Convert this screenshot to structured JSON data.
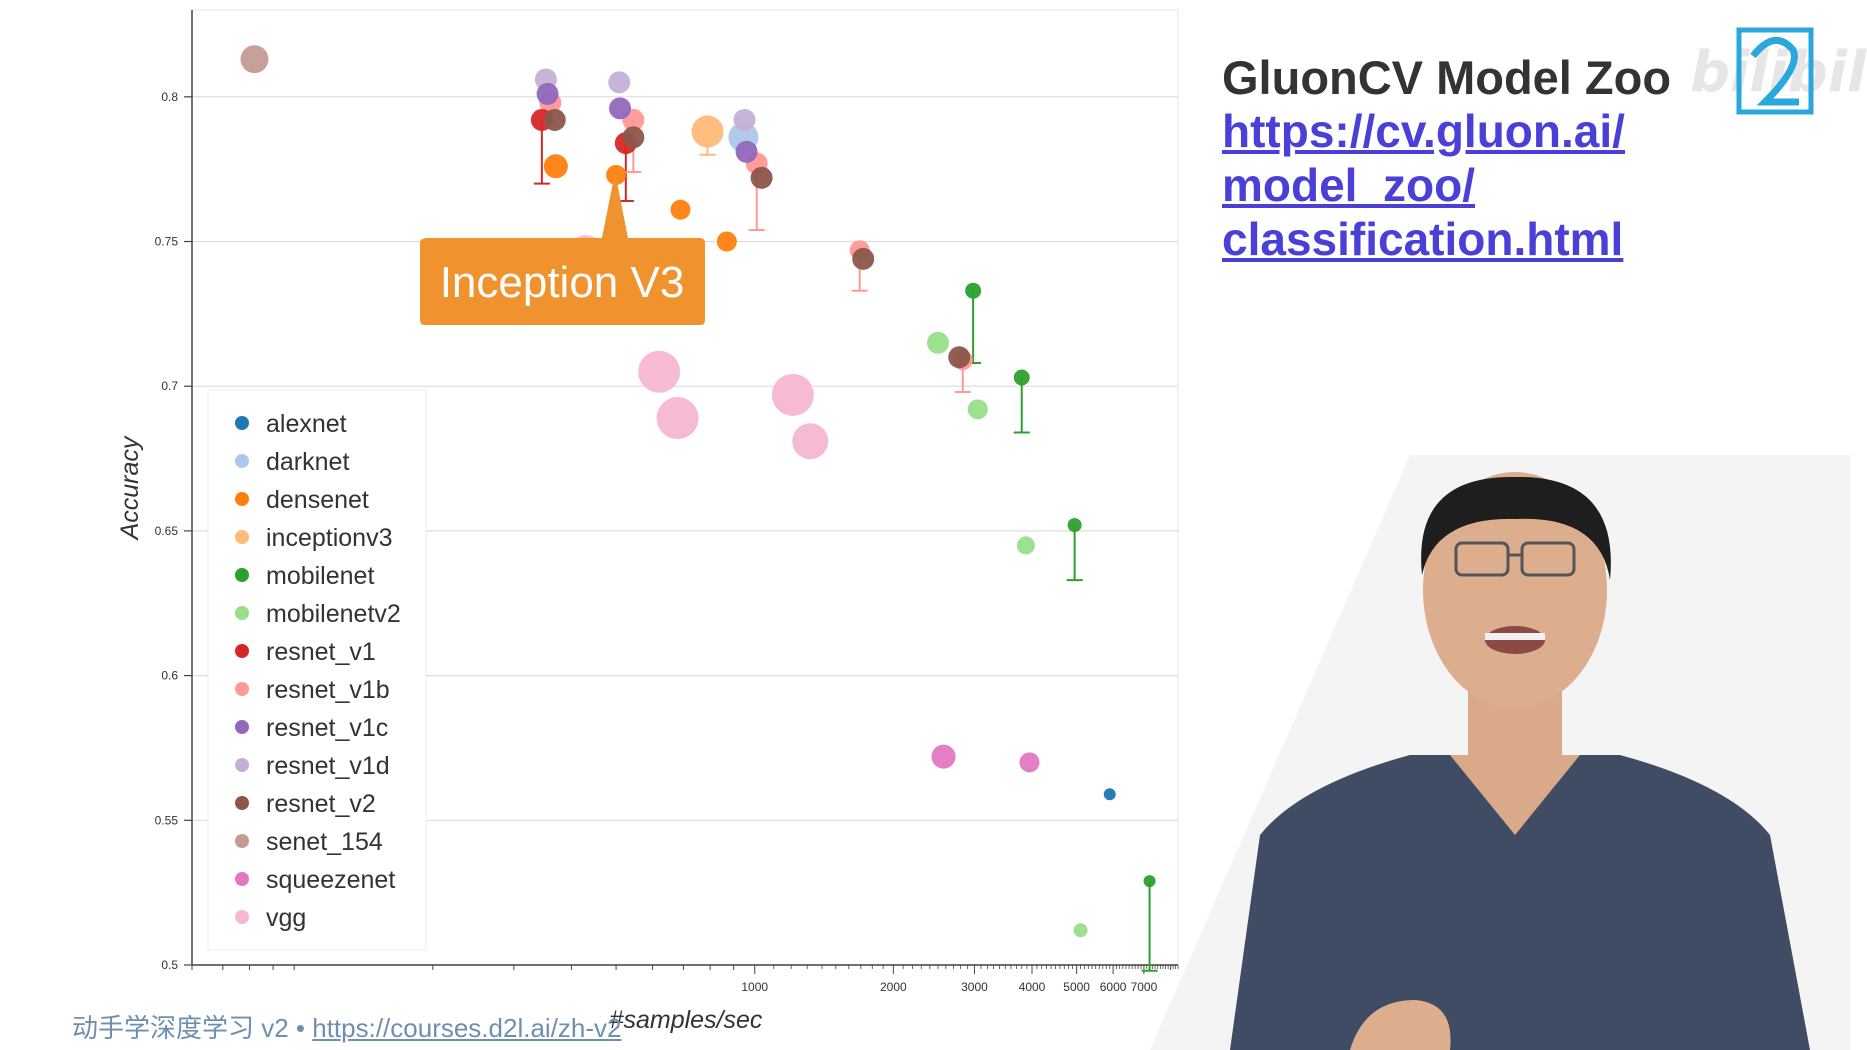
{
  "slide": {
    "title": "GluonCV Model Zoo",
    "link_lines": [
      "https://cv.gluon.ai/",
      "model_zoo/",
      "classification.html"
    ]
  },
  "footer": {
    "course": "动手学深度学习 v2 • ",
    "url": "https://courses.d2l.ai/zh-v2"
  },
  "watermark": "bilibili",
  "callout": {
    "text": "Inception V3",
    "color": "#f0922d"
  },
  "chart_data": {
    "type": "scatter",
    "xlabel": "#samples/sec",
    "ylabel": "Accuracy",
    "x_scale": "log",
    "xlim": [
      60,
      8300
    ],
    "ylim": [
      0.5,
      0.83
    ],
    "x_ticks": [
      1000,
      2000,
      3000,
      4000,
      5000,
      6000,
      7000
    ],
    "x_tick_labels": [
      "1000",
      "2000",
      "3000",
      "4000",
      "5000",
      "6000",
      "7000"
    ],
    "y_ticks": [
      0.5,
      0.55,
      0.6,
      0.65,
      0.7,
      0.75,
      0.8
    ],
    "y_tick_labels": [
      "0.5",
      "0.55",
      "0.6",
      "0.65",
      "0.7",
      "0.75",
      "0.8"
    ],
    "grid": "horizontal",
    "legend_position": "left",
    "series": [
      {
        "name": "alexnet",
        "color": "#1f77b4",
        "points": [
          {
            "x": 5900,
            "y": 0.559,
            "size": 6
          }
        ]
      },
      {
        "name": "darknet",
        "color": "#aec7e8",
        "points": [
          {
            "x": 945,
            "y": 0.786,
            "size": 15
          }
        ]
      },
      {
        "name": "densenet",
        "color": "#ff7f0e",
        "points": [
          {
            "x": 370,
            "y": 0.776,
            "size": 12
          },
          {
            "x": 500,
            "y": 0.773,
            "size": 10
          },
          {
            "x": 690,
            "y": 0.761,
            "size": 10
          },
          {
            "x": 870,
            "y": 0.75,
            "size": 10
          }
        ]
      },
      {
        "name": "inceptionv3",
        "color": "#ffbb78",
        "points": [
          {
            "x": 790,
            "y": 0.788,
            "size": 16,
            "err_low": 0.78
          }
        ]
      },
      {
        "name": "mobilenet",
        "color": "#2ca02c",
        "points": [
          {
            "x": 2980,
            "y": 0.733,
            "size": 8,
            "err_low": 0.708
          },
          {
            "x": 3800,
            "y": 0.703,
            "size": 8,
            "err_low": 0.684
          },
          {
            "x": 4950,
            "y": 0.652,
            "size": 7,
            "err_low": 0.633
          },
          {
            "x": 7200,
            "y": 0.529,
            "size": 6,
            "err_low": 0.498
          }
        ]
      },
      {
        "name": "mobilenetv2",
        "color": "#98df8a",
        "points": [
          {
            "x": 2500,
            "y": 0.715,
            "size": 11
          },
          {
            "x": 3050,
            "y": 0.692,
            "size": 10
          },
          {
            "x": 3880,
            "y": 0.645,
            "size": 9
          },
          {
            "x": 5100,
            "y": 0.512,
            "size": 7
          }
        ]
      },
      {
        "name": "resnet_v1",
        "color": "#d62728",
        "points": [
          {
            "x": 345,
            "y": 0.792,
            "size": 11,
            "err_low": 0.77
          },
          {
            "x": 525,
            "y": 0.784,
            "size": 11,
            "err_low": 0.764
          }
        ]
      },
      {
        "name": "resnet_v1b",
        "color": "#ff9896",
        "points": [
          {
            "x": 360,
            "y": 0.798,
            "size": 11
          },
          {
            "x": 545,
            "y": 0.792,
            "size": 11,
            "err_low": 0.774
          },
          {
            "x": 1010,
            "y": 0.777,
            "size": 11,
            "err_low": 0.754
          },
          {
            "x": 1690,
            "y": 0.747,
            "size": 10,
            "err_low": 0.733
          },
          {
            "x": 2830,
            "y": 0.709,
            "size": 10,
            "err_low": 0.698
          }
        ]
      },
      {
        "name": "resnet_v1c",
        "color": "#9467bd",
        "points": [
          {
            "x": 355,
            "y": 0.801,
            "size": 11
          },
          {
            "x": 510,
            "y": 0.796,
            "size": 11
          },
          {
            "x": 960,
            "y": 0.781,
            "size": 11
          }
        ]
      },
      {
        "name": "resnet_v1d",
        "color": "#c5b0d5",
        "points": [
          {
            "x": 352,
            "y": 0.806,
            "size": 11
          },
          {
            "x": 508,
            "y": 0.805,
            "size": 11
          },
          {
            "x": 950,
            "y": 0.792,
            "size": 11
          }
        ]
      },
      {
        "name": "resnet_v2",
        "color": "#8c564b",
        "points": [
          {
            "x": 368,
            "y": 0.792,
            "size": 11
          },
          {
            "x": 545,
            "y": 0.786,
            "size": 11
          },
          {
            "x": 1035,
            "y": 0.772,
            "size": 11
          },
          {
            "x": 1720,
            "y": 0.744,
            "size": 11
          },
          {
            "x": 2780,
            "y": 0.71,
            "size": 11
          }
        ]
      },
      {
        "name": "senet_154",
        "color": "#c49c94",
        "points": [
          {
            "x": 82,
            "y": 0.813,
            "size": 14
          }
        ]
      },
      {
        "name": "squeezenet",
        "color": "#e377c2",
        "points": [
          {
            "x": 2570,
            "y": 0.572,
            "size": 12
          },
          {
            "x": 3950,
            "y": 0.57,
            "size": 10
          }
        ]
      },
      {
        "name": "vgg",
        "color": "#f7b6d2",
        "points": [
          {
            "x": 430,
            "y": 0.746,
            "size": 18
          },
          {
            "x": 620,
            "y": 0.705,
            "size": 21
          },
          {
            "x": 680,
            "y": 0.689,
            "size": 21
          },
          {
            "x": 1210,
            "y": 0.697,
            "size": 21
          },
          {
            "x": 1320,
            "y": 0.681,
            "size": 18
          }
        ]
      }
    ]
  }
}
